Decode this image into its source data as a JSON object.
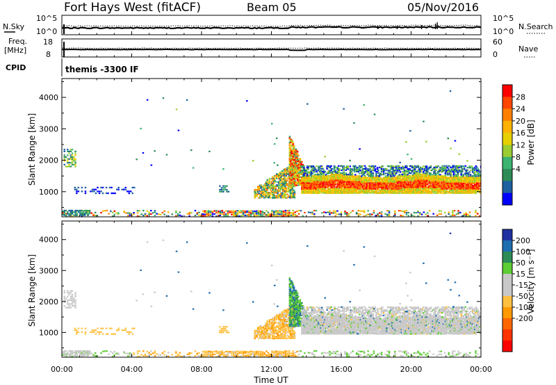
{
  "header": {
    "station": "Fort Hays West (fitACF)",
    "beam": "Beam 05",
    "date": "05/Nov/2016"
  },
  "strip": {
    "nsky_label": "N.Sky",
    "nsky_ticks": [
      "10^5",
      "10^0"
    ],
    "nsearch_label": "N.Search",
    "nsearch_ticks": [
      "10^5",
      "10^0"
    ],
    "freq_label": "Freq.",
    "freq_unit": "[MHz]",
    "freq_ticks": [
      "18",
      "8"
    ],
    "nave_label": "Nave",
    "nave_ticks": [
      "60",
      "0"
    ],
    "cpid_label": "CPID",
    "cpid_text": "themis -3300 IF"
  },
  "chart_data": [
    {
      "type": "heatmap",
      "name": "power",
      "ylabel": "Slant Range [km]",
      "ylim": [
        200,
        4600
      ],
      "yticks": [
        "1000",
        "2000",
        "3000",
        "4000"
      ],
      "xlim": [
        0,
        24
      ],
      "colorbar": {
        "label": "Power [dB]",
        "ticks": [
          "28",
          "24",
          "20",
          "16",
          "12",
          "8",
          "4"
        ],
        "colors": [
          "#ff0000",
          "#ff4500",
          "#ff8000",
          "#ffb300",
          "#e6d000",
          "#9acd32",
          "#3cb371",
          "#2e8b57",
          "#1e5fa0",
          "#0000ff"
        ]
      }
    },
    {
      "type": "heatmap",
      "name": "velocity",
      "ylabel": "Slant Range [km]",
      "ylim": [
        200,
        4600
      ],
      "yticks": [
        "1000",
        "2000",
        "3000",
        "4000"
      ],
      "xlim": [
        0,
        24
      ],
      "xticks": [
        "00:00",
        "04:00",
        "08:00",
        "12:00",
        "16:00",
        "20:00",
        "00:00"
      ],
      "xlabel": "Time UT",
      "colorbar": {
        "label": "Velocity [m s⁻¹]",
        "ticks": [
          "200",
          "100",
          "50",
          "15",
          "-15",
          "-50",
          "-100",
          "-200"
        ],
        "colors": [
          "#2030a0",
          "#1e6db0",
          "#2e8b57",
          "#5ccd32",
          "#c8c8c8",
          "#c8c8c8",
          "#ffc040",
          "#ff9900",
          "#ff6600",
          "#ff3300",
          "#ff0000"
        ]
      }
    }
  ]
}
